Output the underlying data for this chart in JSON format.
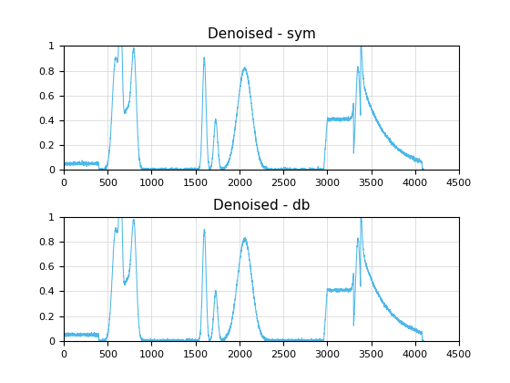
{
  "title1": "Denoised - sym",
  "title2": "Denoised - db",
  "xlim": [
    0,
    4500
  ],
  "ylim": [
    0,
    1
  ],
  "xticks": [
    0,
    500,
    1000,
    1500,
    2000,
    2500,
    3000,
    3500,
    4000,
    4500
  ],
  "yticks": [
    0,
    0.2,
    0.4,
    0.6,
    0.8,
    1.0
  ],
  "line_color": "#4db8e8",
  "title_fontsize": 11,
  "figsize": [
    5.6,
    4.2
  ],
  "dpi": 100,
  "hspace": 0.38
}
